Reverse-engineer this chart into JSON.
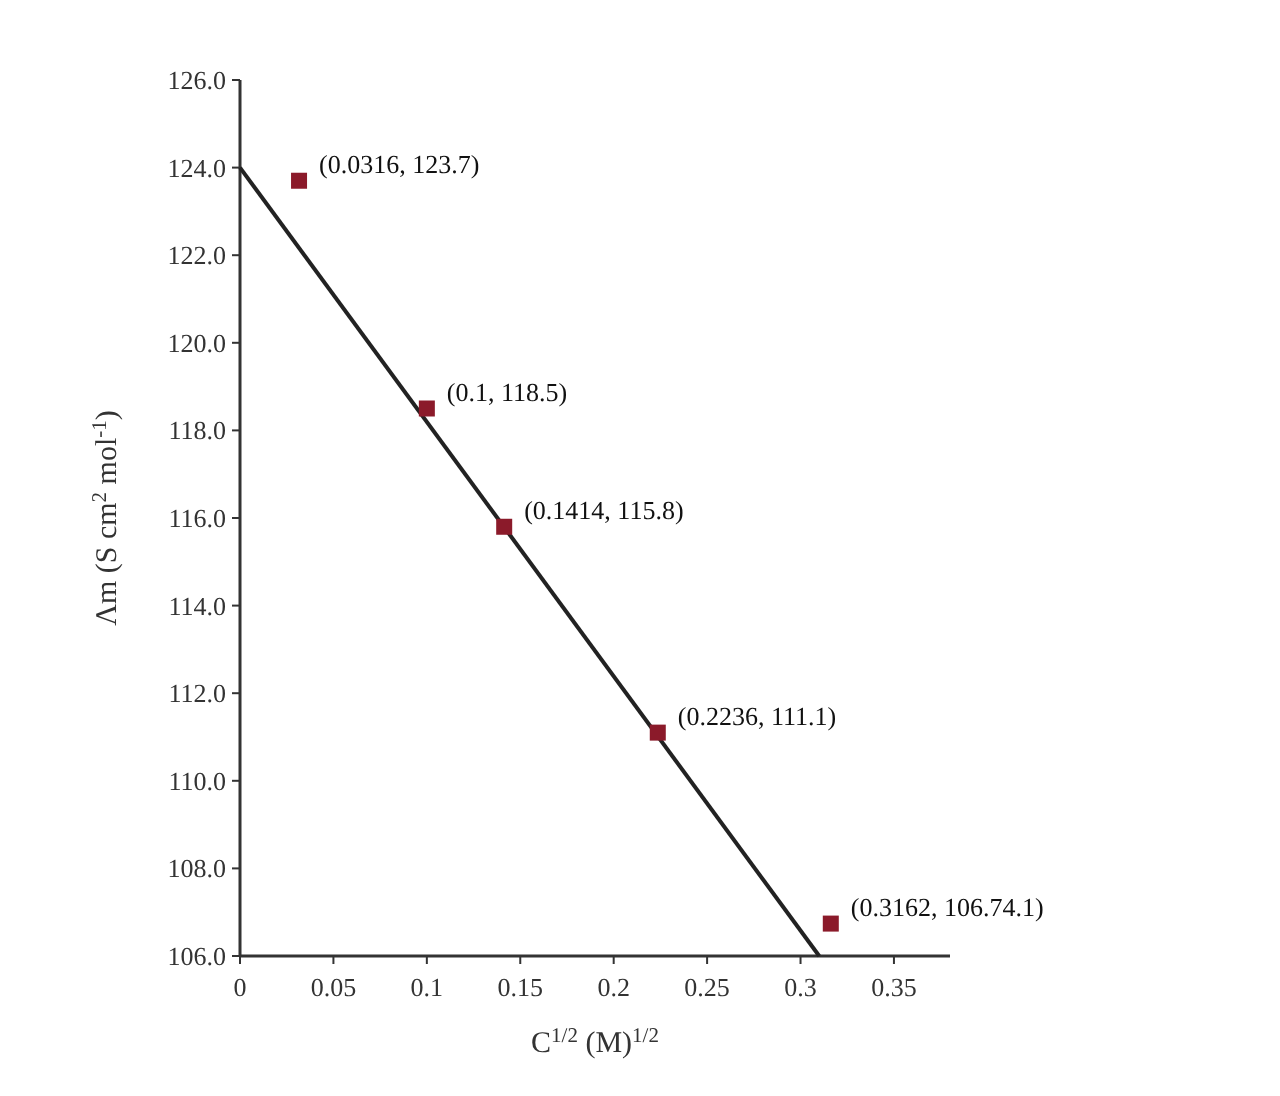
{
  "chart_data": {
    "type": "scatter",
    "xlabel": "C$^{1/2}$ (M)$^{1/2}$",
    "ylabel": "Λm (S cm$^{2}$ mol$^{-1}$)",
    "xlim": [
      0,
      0.38
    ],
    "xticks": [
      0,
      0.05,
      0.1,
      0.15,
      0.2,
      0.25,
      0.3,
      0.35
    ],
    "ylim": [
      106,
      126
    ],
    "yticks": [
      {
        "value": 106,
        "label": "106.0"
      },
      {
        "value": 108,
        "label": "108.0"
      },
      {
        "value": 110,
        "label": "110.0"
      },
      {
        "value": 112,
        "label": "112.0"
      },
      {
        "value": 114,
        "label": "114.0"
      },
      {
        "value": 116,
        "label": "116.0"
      },
      {
        "value": 118,
        "label": "118.0"
      },
      {
        "value": 120,
        "label": "120.0"
      },
      {
        "value": 122,
        "label": "122.0"
      },
      {
        "value": 124,
        "label": "124.0"
      },
      {
        "value": 126,
        "label": "126.0"
      }
    ],
    "grid": false,
    "series": [
      {
        "type": "line",
        "color": "#222222",
        "x": [
          0,
          0.31
        ],
        "values": [
          124.0,
          106.0
        ],
        "marker": "none",
        "line_style": "solid"
      },
      {
        "color": "#8b1a2a",
        "marker": "square",
        "x": [
          0.0316,
          0.1,
          0.1414,
          0.2236,
          0.3162
        ],
        "values": [
          123.7,
          118.5,
          115.8,
          111.1,
          106.74
        ],
        "value_labels": [
          "(0.0316, 123.7)",
          "(0.1, 118.5)",
          "(0.1414, 115.8)",
          "(0.2236, 111.1)",
          "(0.3162, 106.74.1)"
        ]
      }
    ]
  }
}
